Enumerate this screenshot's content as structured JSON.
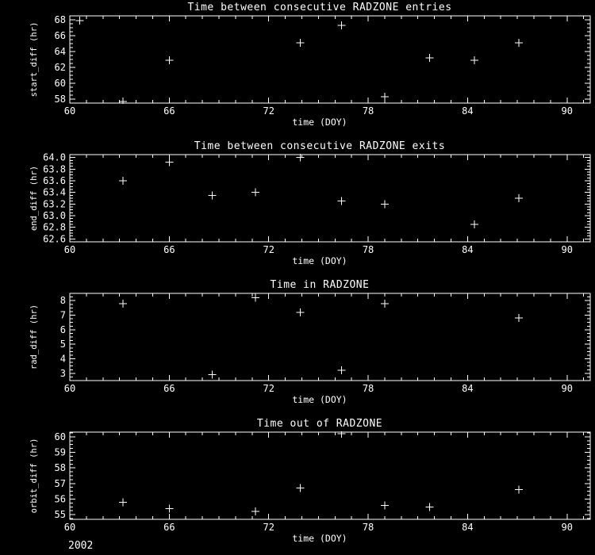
{
  "footer": {
    "year": "2002"
  },
  "colors": {
    "background": "#000000",
    "foreground": "#ffffff"
  },
  "chart_data": [
    {
      "type": "scatter",
      "title": "Time between consecutive RADZONE entries",
      "xlabel": "time (DOY)",
      "ylabel": "start_diff (hr)",
      "xlim": [
        60,
        91.4
      ],
      "ylim": [
        57.5,
        68.5
      ],
      "xticks": [
        60,
        66,
        72,
        78,
        84,
        90
      ],
      "yticks": [
        58,
        60,
        62,
        64,
        66,
        68
      ],
      "x_minor_step": 1,
      "y_minor_step": 0.5,
      "y_decimals": 0,
      "marker": "plus",
      "legend": "none",
      "grid": false,
      "points": [
        [
          60.6,
          67.9
        ],
        [
          63.2,
          57.7
        ],
        [
          66.0,
          62.9
        ],
        [
          73.9,
          65.1
        ],
        [
          76.4,
          67.3
        ],
        [
          79.0,
          58.3
        ],
        [
          81.7,
          63.2
        ],
        [
          84.4,
          62.9
        ],
        [
          87.1,
          65.1
        ]
      ]
    },
    {
      "type": "scatter",
      "title": "Time between consecutive RADZONE exits",
      "xlabel": "time (DOY)",
      "ylabel": "end_diff (hr)",
      "xlim": [
        60,
        91.4
      ],
      "ylim": [
        62.55,
        64.05
      ],
      "xticks": [
        60,
        66,
        72,
        78,
        84,
        90
      ],
      "yticks": [
        62.6,
        62.8,
        63.0,
        63.2,
        63.4,
        63.6,
        63.8,
        64.0
      ],
      "x_minor_step": 1,
      "y_minor_step": 0.05,
      "y_decimals": 1,
      "marker": "plus",
      "legend": "none",
      "grid": false,
      "points": [
        [
          63.2,
          63.6
        ],
        [
          66.0,
          63.92
        ],
        [
          68.6,
          63.35
        ],
        [
          71.2,
          63.4
        ],
        [
          73.9,
          64.0
        ],
        [
          76.4,
          63.25
        ],
        [
          79.0,
          63.2
        ],
        [
          84.4,
          62.85
        ],
        [
          87.1,
          63.3
        ]
      ]
    },
    {
      "type": "scatter",
      "title": "Time in RADZONE",
      "xlabel": "time (DOY)",
      "ylabel": "rad_diff (hr)",
      "xlim": [
        60,
        91.4
      ],
      "ylim": [
        2.5,
        8.5
      ],
      "xticks": [
        60,
        66,
        72,
        78,
        84,
        90
      ],
      "yticks": [
        3,
        4,
        5,
        6,
        7,
        8
      ],
      "x_minor_step": 1,
      "y_minor_step": 0.25,
      "y_decimals": 0,
      "marker": "plus",
      "legend": "none",
      "grid": false,
      "points": [
        [
          63.2,
          7.8
        ],
        [
          68.6,
          2.9
        ],
        [
          71.2,
          8.2
        ],
        [
          73.9,
          7.2
        ],
        [
          76.4,
          3.2
        ],
        [
          79.0,
          7.8
        ],
        [
          87.1,
          6.8
        ]
      ]
    },
    {
      "type": "scatter",
      "title": "Time out of RADZONE",
      "xlabel": "time (DOY)",
      "ylabel": "orbit_diff (hr)",
      "xlim": [
        60,
        91.4
      ],
      "ylim": [
        54.7,
        60.3
      ],
      "xticks": [
        60,
        66,
        72,
        78,
        84,
        90
      ],
      "yticks": [
        55,
        56,
        57,
        58,
        59,
        60
      ],
      "x_minor_step": 1,
      "y_minor_step": 0.25,
      "y_decimals": 0,
      "marker": "plus",
      "legend": "none",
      "grid": false,
      "points": [
        [
          63.2,
          55.8
        ],
        [
          66.0,
          55.4
        ],
        [
          71.2,
          55.2
        ],
        [
          73.9,
          56.7
        ],
        [
          76.4,
          60.2
        ],
        [
          79.0,
          55.6
        ],
        [
          81.7,
          55.5
        ],
        [
          87.1,
          56.6
        ]
      ]
    }
  ]
}
